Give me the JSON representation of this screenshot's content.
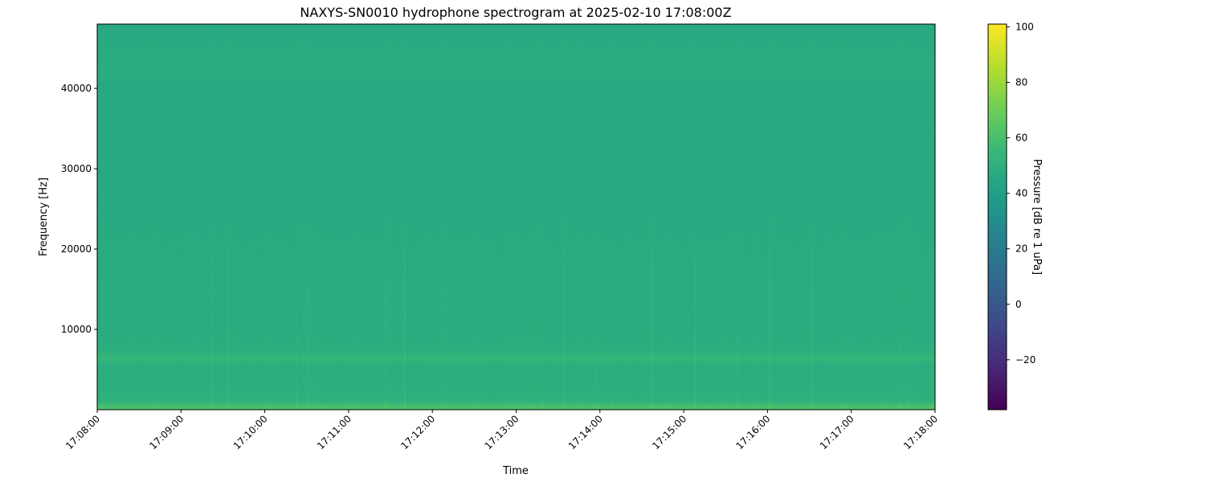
{
  "chart_data": {
    "type": "heatmap",
    "title": "NAXYS-SN0010 hydrophone spectrogram at 2025-02-10 17:08:00Z",
    "xlabel": "Time",
    "ylabel": "Frequency [Hz]",
    "colorbar_label": "Pressure [dB re 1 uPa]",
    "colormap": "viridis",
    "x_ticks": [
      "17:08:00",
      "17:09:00",
      "17:10:00",
      "17:11:00",
      "17:12:00",
      "17:13:00",
      "17:14:00",
      "17:15:00",
      "17:16:00",
      "17:17:00",
      "17:18:00"
    ],
    "xlim": [
      "17:08:00",
      "17:18:00"
    ],
    "y_ticks": [
      10000,
      20000,
      30000,
      40000
    ],
    "ylim": [
      0,
      48000
    ],
    "colorbar_ticks": [
      -20,
      0,
      20,
      40,
      60,
      80,
      100
    ],
    "clim": [
      -38,
      101
    ],
    "grid": false,
    "frequency_profile_hz": [
      0,
      500,
      1000,
      2000,
      5500,
      6500,
      7500,
      10000,
      15000,
      20000,
      30000,
      40500,
      41500,
      48000
    ],
    "frequency_profile_db": [
      62,
      60,
      52,
      50,
      49,
      54,
      49,
      48,
      48,
      47,
      46,
      46,
      48,
      46
    ],
    "background_db": 47
  }
}
